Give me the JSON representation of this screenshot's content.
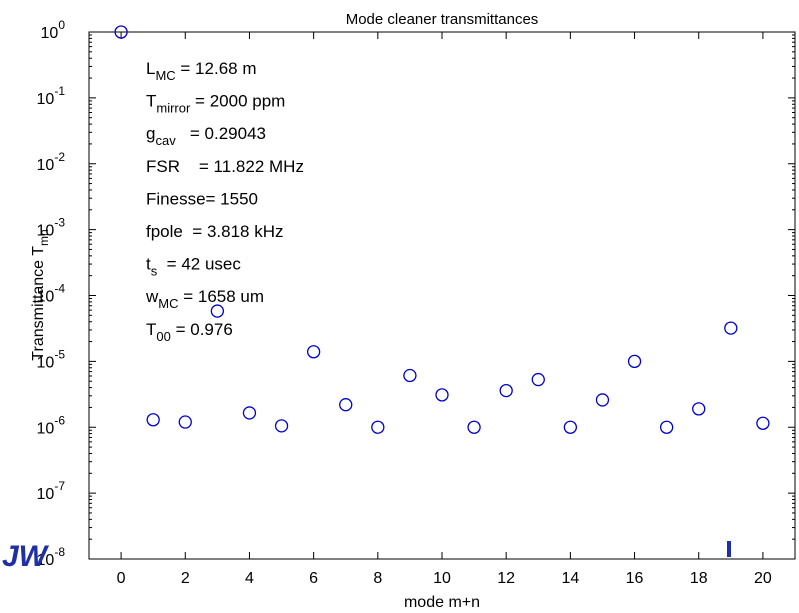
{
  "chart_data": {
    "type": "scatter",
    "title": "Mode cleaner transmittances",
    "xlabel": "mode m+n",
    "ylabel_main": "Transmittance T",
    "ylabel_sub": "mn",
    "xlim": [
      -1,
      21
    ],
    "ylim": [
      1e-08,
      1
    ],
    "yscale": "log",
    "x_ticks": [
      "0",
      "2",
      "4",
      "6",
      "8",
      "10",
      "12",
      "14",
      "16",
      "18",
      "20"
    ],
    "y_tick_exponents": [
      "0",
      "-1",
      "-2",
      "-3",
      "-4",
      "-5",
      "-6",
      "-7",
      "-8"
    ],
    "y_tick_base": "10",
    "marker": "circle",
    "marker_color": "#0000cc",
    "grid": false,
    "legend": "none",
    "x": [
      0,
      1,
      2,
      3,
      4,
      5,
      6,
      7,
      8,
      9,
      10,
      11,
      12,
      13,
      14,
      15,
      16,
      17,
      18,
      19,
      20
    ],
    "y": [
      1.0,
      1.3e-06,
      1.2e-06,
      5.8e-05,
      1.65e-06,
      1.05e-06,
      1.4e-05,
      2.2e-06,
      1e-06,
      6.1e-06,
      3.1e-06,
      1e-06,
      3.6e-06,
      5.3e-06,
      1e-06,
      2.6e-06,
      1e-05,
      1e-06,
      1.9e-06,
      3.2e-05,
      1.15e-06
    ],
    "annotations": [
      {
        "main": "L",
        "sub": "MC",
        "rest": " = 12.68 m"
      },
      {
        "main": "T",
        "sub": "mirror",
        "rest": " = 2000 ppm"
      },
      {
        "main": "g",
        "sub": "cav",
        "rest": "   = 0.29043"
      },
      {
        "main": "FSR    = 11.822 MHz",
        "sub": "",
        "rest": ""
      },
      {
        "main": "Finesse= 1550",
        "sub": "",
        "rest": ""
      },
      {
        "main": "fpole  = 3.818 kHz",
        "sub": "",
        "rest": ""
      },
      {
        "main": "t",
        "sub": "s",
        "rest": "  = 42 usec"
      },
      {
        "main": "w",
        "sub": "MC",
        "rest": " = 1658 um"
      },
      {
        "main": "T",
        "sub": "00",
        "rest": " = 0.976"
      }
    ]
  },
  "logo_text": "JW"
}
